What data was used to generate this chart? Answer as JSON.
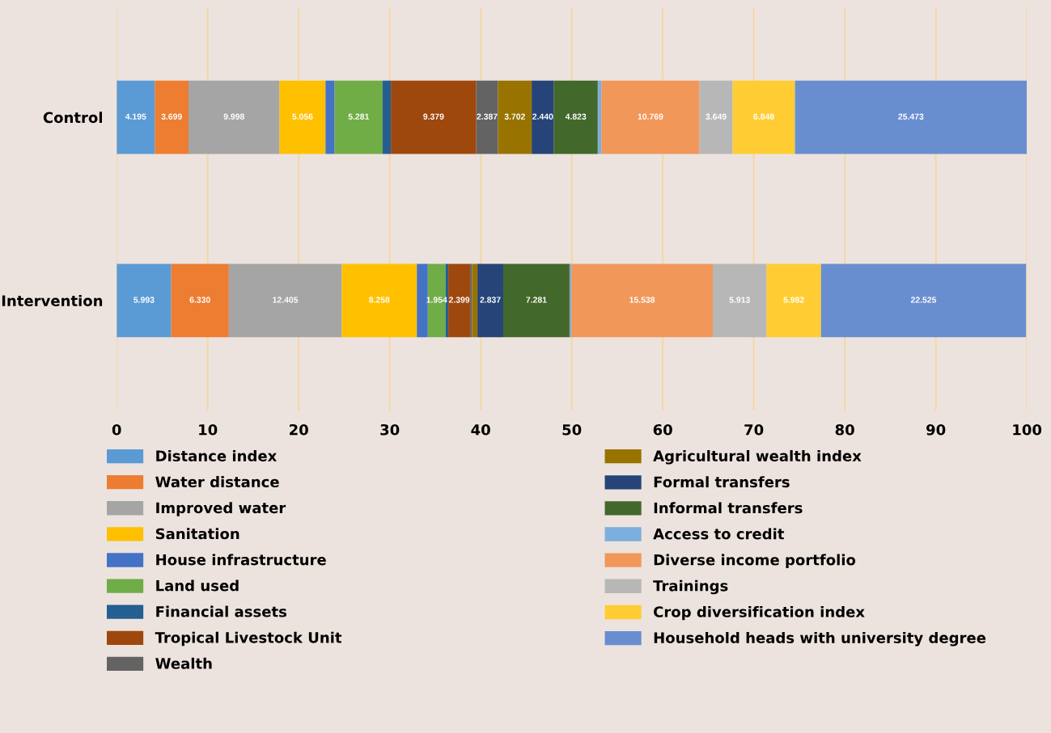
{
  "chart_data": {
    "type": "bar",
    "orientation": "horizontal",
    "stacked": true,
    "categories": [
      "Control",
      "Intervention"
    ],
    "xlim": [
      0,
      100
    ],
    "xticks": [
      0,
      10,
      20,
      30,
      40,
      50,
      60,
      70,
      80,
      90,
      100
    ],
    "grid": "x",
    "legend": "bottom",
    "series": [
      {
        "name": "Distance index",
        "color": "#5b9bd5",
        "values": [
          4.195,
          5.993
        ],
        "value_labels": [
          "4.195",
          "5.993"
        ]
      },
      {
        "name": "Water distance",
        "color": "#ed7d31",
        "values": [
          3.699,
          6.33
        ],
        "value_labels": [
          "3.699",
          "6.330"
        ]
      },
      {
        "name": "Improved water",
        "color": "#a5a5a5",
        "values": [
          9.998,
          12.405
        ],
        "value_labels": [
          "9.998",
          "12.405"
        ]
      },
      {
        "name": "Sanitation",
        "color": "#ffc000",
        "values": [
          5.056,
          8.258
        ],
        "value_labels": [
          "5.056",
          "8.258"
        ]
      },
      {
        "name": "House infrastructure",
        "color": "#4472c4",
        "values": [
          1.0,
          1.2
        ],
        "value_labels": [
          null,
          null
        ]
      },
      {
        "name": "Land used",
        "color": "#70ad47",
        "values": [
          5.281,
          1.954
        ],
        "value_labels": [
          "5.281",
          "1.954"
        ]
      },
      {
        "name": "Financial assets",
        "color": "#255e91",
        "values": [
          0.9,
          0.3
        ],
        "value_labels": [
          null,
          null
        ]
      },
      {
        "name": "Tropical Livestock Unit",
        "color": "#9e480e",
        "values": [
          9.379,
          2.399
        ],
        "value_labels": [
          "9.379",
          "2.399"
        ]
      },
      {
        "name": "Wealth",
        "color": "#636363",
        "values": [
          2.387,
          0.2
        ],
        "value_labels": [
          "2.387",
          null
        ]
      },
      {
        "name": "Agricultural wealth index",
        "color": "#997300",
        "values": [
          3.702,
          0.6
        ],
        "value_labels": [
          "3.702",
          null
        ]
      },
      {
        "name": "Formal transfers",
        "color": "#264478",
        "values": [
          2.44,
          2.837
        ],
        "value_labels": [
          "2.440",
          "2.837"
        ]
      },
      {
        "name": "Informal transfers",
        "color": "#43682b",
        "values": [
          4.823,
          7.281
        ],
        "value_labels": [
          "4.823",
          "7.281"
        ]
      },
      {
        "name": "Access to credit",
        "color": "#7cafdd",
        "values": [
          0.4,
          0.2
        ],
        "value_labels": [
          null,
          null
        ]
      },
      {
        "name": "Diverse income portfolio",
        "color": "#f1975a",
        "values": [
          10.769,
          15.538
        ],
        "value_labels": [
          "10.769",
          "15.538"
        ]
      },
      {
        "name": "Trainings",
        "color": "#b7b7b7",
        "values": [
          3.649,
          5.913
        ],
        "value_labels": [
          "3.649",
          "5.913"
        ]
      },
      {
        "name": "Crop diversification index",
        "color": "#ffcd33",
        "values": [
          6.848,
          5.982
        ],
        "value_labels": [
          "6.848",
          "5.982"
        ]
      },
      {
        "name": "Household heads with university degree",
        "color": "#698ed0",
        "values": [
          25.473,
          22.525
        ],
        "value_labels": [
          "25.473",
          "22.525"
        ]
      }
    ]
  }
}
